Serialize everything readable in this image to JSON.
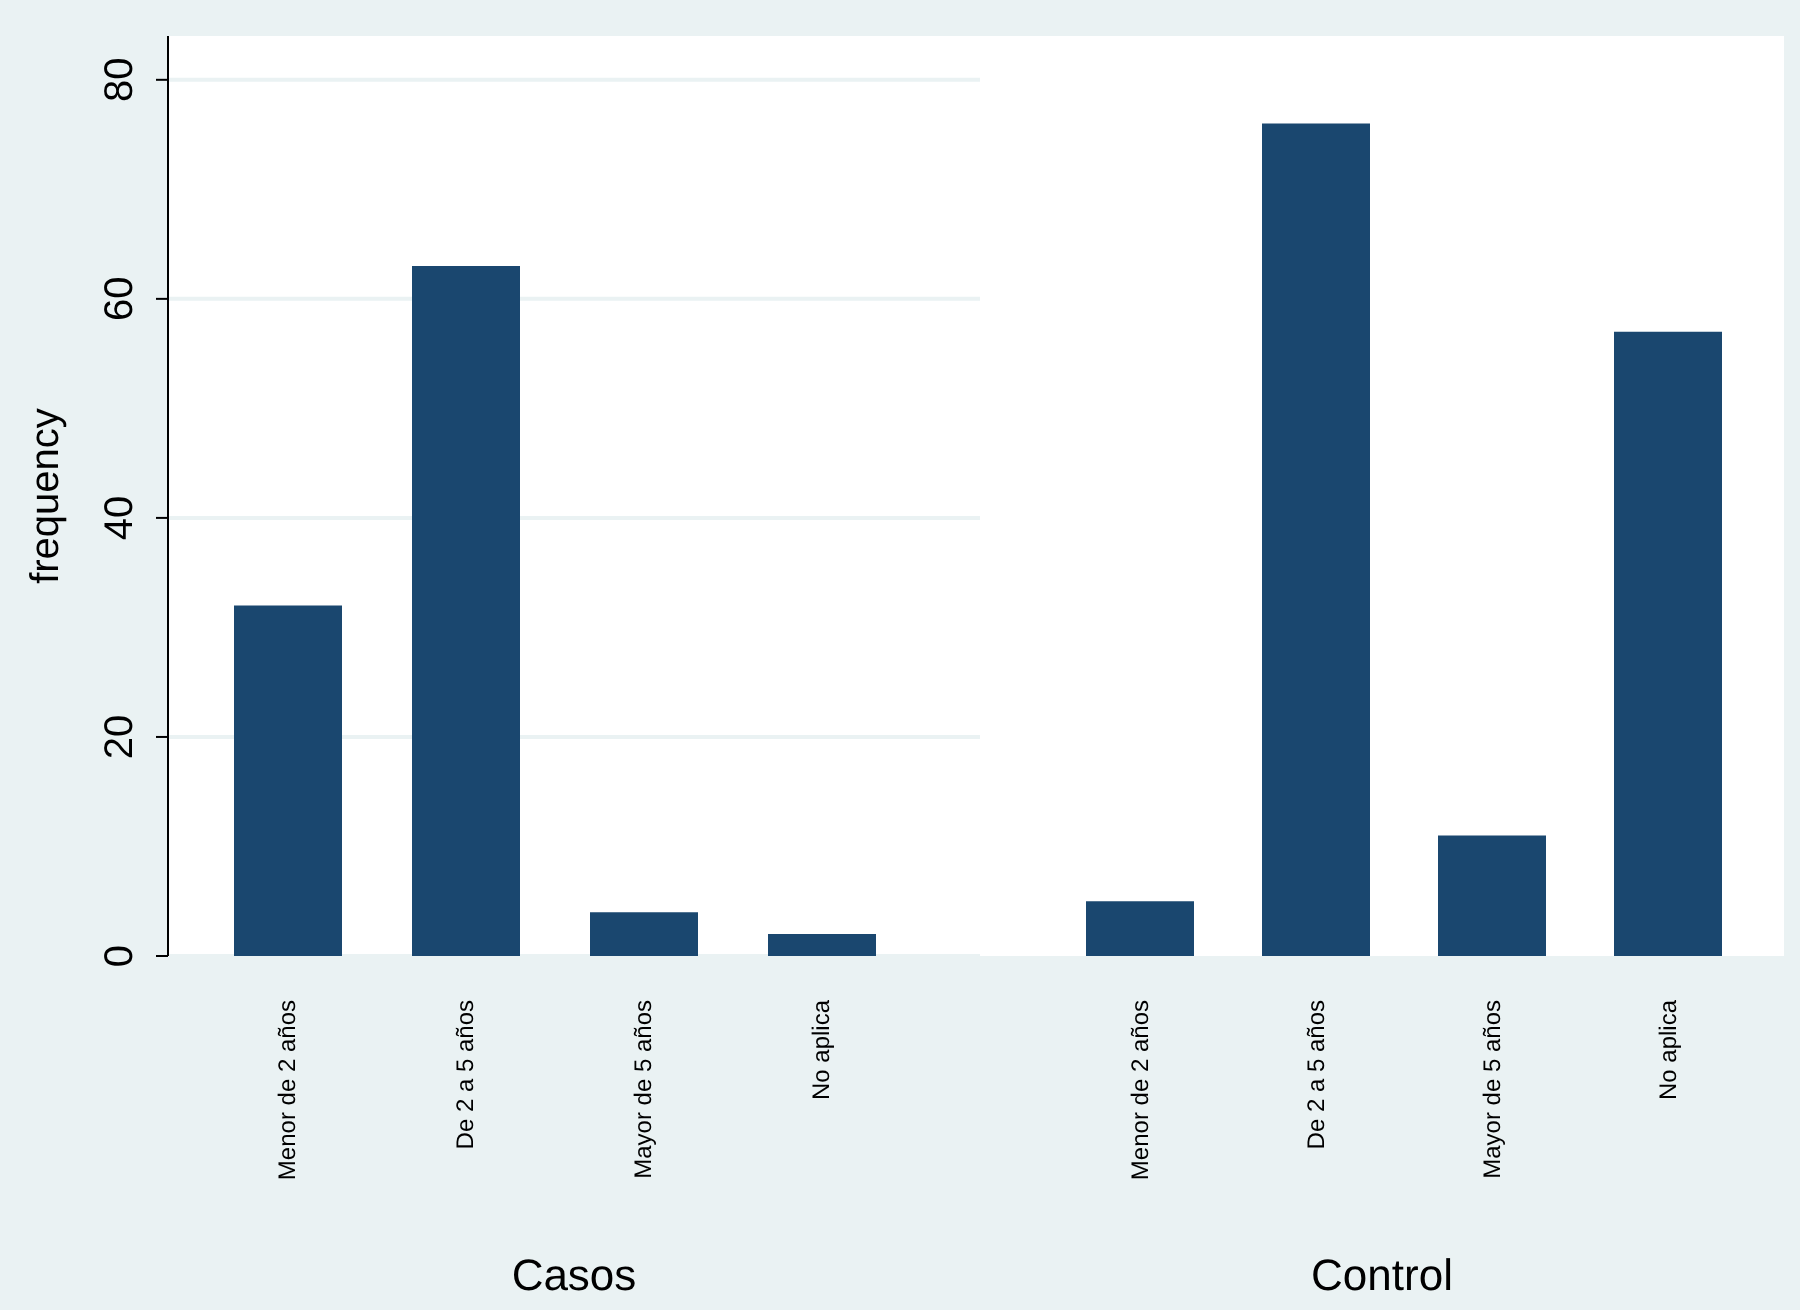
{
  "chart_data": [
    {
      "type": "bar",
      "categories": [
        "Menor de 2 años",
        "De 2 a 5 años",
        "Mayor de 5 años",
        "No aplica"
      ],
      "values": [
        32,
        63,
        4,
        2
      ],
      "color": "#1a476f",
      "xlabel": "Casos",
      "ylabel": "frequency",
      "ylim": [
        0,
        84
      ],
      "yticks": [
        0,
        20,
        40,
        60,
        80
      ],
      "grid": "y"
    },
    {
      "type": "bar",
      "categories": [
        "Menor de 2 años",
        "De 2 a 5 años",
        "Mayor de 5 años",
        "No aplica"
      ],
      "values": [
        5,
        76,
        11,
        57
      ],
      "color": "#1a476f",
      "xlabel": "Control",
      "ylim": [
        0,
        84
      ],
      "yticks": [
        0,
        20,
        40,
        60,
        80
      ],
      "grid": "y",
      "tick_labels": "x"
    }
  ]
}
